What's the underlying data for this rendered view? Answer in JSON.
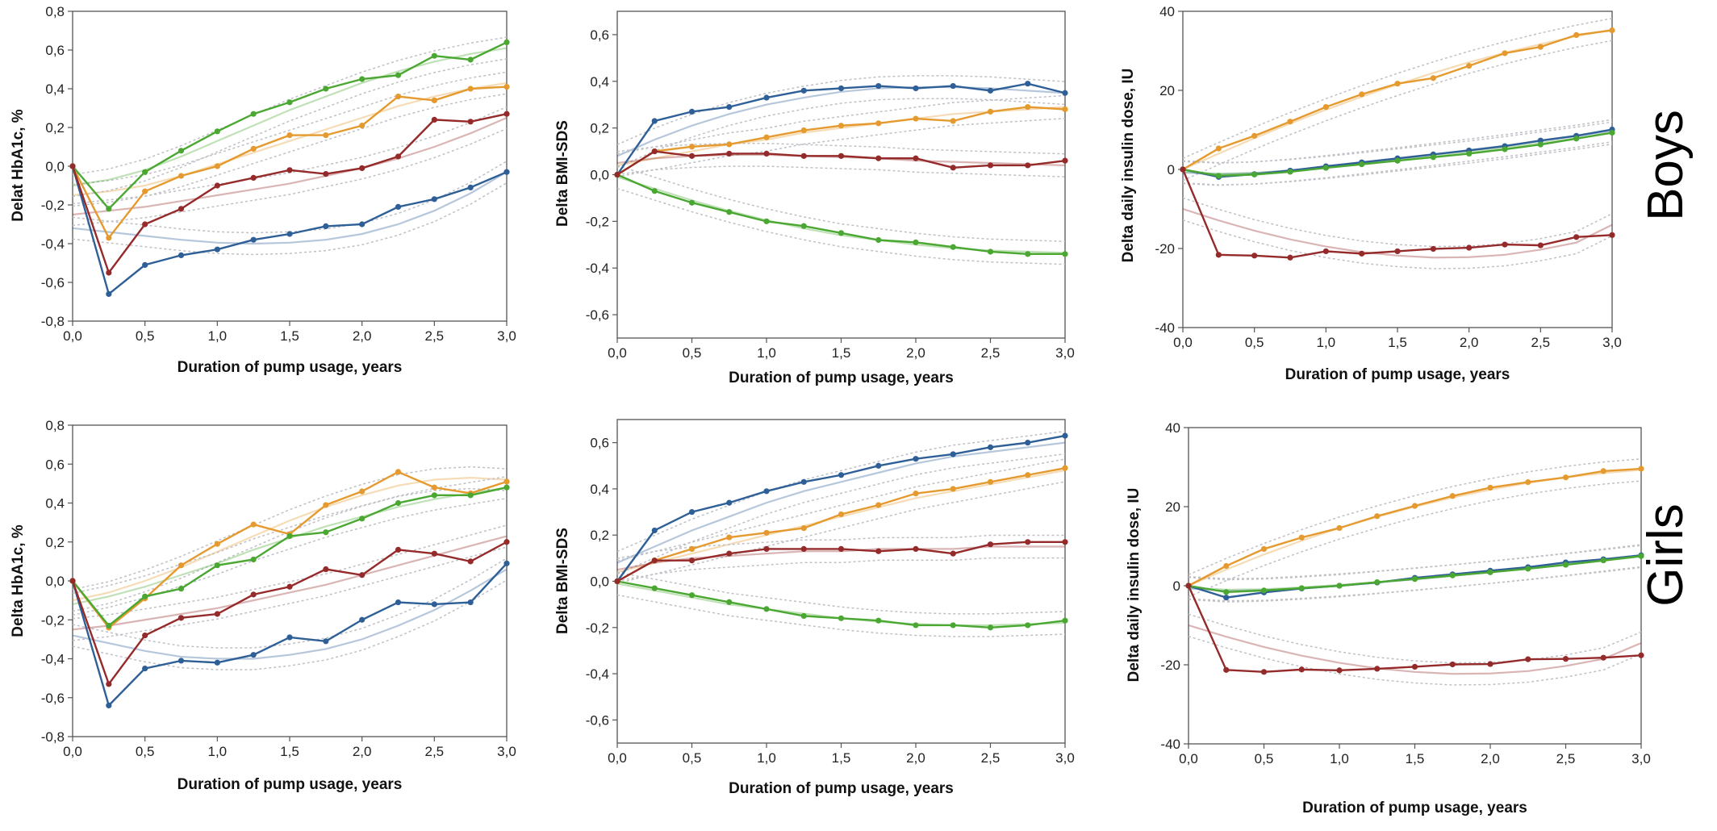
{
  "row_labels": [
    "Boys",
    "Girls"
  ],
  "colors": {
    "blue": "#2f5f97",
    "orange": "#e59a2f",
    "green": "#4aa832",
    "red": "#952a2a",
    "fit_line": "#bfc0c6"
  },
  "chart_data": [
    {
      "id": "boys-hba1c",
      "type": "line",
      "xlabel": "Duration of pump usage, years",
      "ylabel": "Delat HbA1c, %",
      "xlim": [
        0,
        3
      ],
      "ylim": [
        -0.8,
        0.8
      ],
      "xticks": [
        "0,0",
        "0,5",
        "1,0",
        "1,5",
        "2,0",
        "2,5",
        "3,0"
      ],
      "yticks": [
        "-0,8",
        "-0,6",
        "-0,4",
        "-0,2",
        "0,0",
        "0,2",
        "0,4",
        "0,6",
        "0,8"
      ],
      "x": [
        0,
        0.25,
        0.5,
        0.75,
        1,
        1.25,
        1.5,
        1.75,
        2,
        2.25,
        2.5,
        2.75,
        3
      ],
      "series": [
        {
          "color": "blue",
          "values": [
            0,
            -0.66,
            -0.51,
            -0.46,
            -0.43,
            -0.38,
            -0.35,
            -0.31,
            -0.3,
            -0.21,
            -0.17,
            -0.11,
            -0.03
          ],
          "fit": [
            -0.32,
            -0.34,
            -0.36,
            -0.38,
            -0.395,
            -0.4,
            -0.395,
            -0.38,
            -0.35,
            -0.3,
            -0.23,
            -0.14,
            -0.03
          ]
        },
        {
          "color": "orange",
          "values": [
            0,
            -0.37,
            -0.13,
            -0.05,
            0.0,
            0.09,
            0.16,
            0.16,
            0.21,
            0.36,
            0.34,
            0.4,
            0.41
          ],
          "fit": [
            -0.15,
            -0.13,
            -0.1,
            -0.05,
            0.01,
            0.07,
            0.13,
            0.19,
            0.25,
            0.31,
            0.36,
            0.4,
            0.43
          ]
        },
        {
          "color": "green",
          "values": [
            0,
            -0.22,
            -0.03,
            0.08,
            0.18,
            0.27,
            0.33,
            0.4,
            0.45,
            0.47,
            0.57,
            0.55,
            0.64
          ],
          "fit": [
            -0.1,
            -0.07,
            -0.02,
            0.05,
            0.13,
            0.21,
            0.29,
            0.36,
            0.43,
            0.49,
            0.54,
            0.58,
            0.61
          ]
        },
        {
          "color": "red",
          "values": [
            0,
            -0.55,
            -0.3,
            -0.22,
            -0.1,
            -0.06,
            -0.02,
            -0.04,
            -0.01,
            0.05,
            0.24,
            0.23,
            0.27
          ],
          "fit": [
            -0.25,
            -0.23,
            -0.21,
            -0.18,
            -0.15,
            -0.12,
            -0.09,
            -0.05,
            -0.01,
            0.04,
            0.1,
            0.17,
            0.25
          ]
        }
      ]
    },
    {
      "id": "boys-bmi",
      "type": "line",
      "xlabel": "Duration of pump usage, years",
      "ylabel": "Delta BMI-SDS",
      "xlim": [
        0,
        3
      ],
      "ylim": [
        -0.7,
        0.7
      ],
      "xticks": [
        "0,0",
        "0,5",
        "1,0",
        "1,5",
        "2,0",
        "2,5",
        "3,0"
      ],
      "yticks": [
        "-0,6",
        "-0,4",
        "-0,2",
        "0,0",
        "0,2",
        "0,4",
        "0,6"
      ],
      "x": [
        0,
        0.25,
        0.5,
        0.75,
        1,
        1.25,
        1.5,
        1.75,
        2,
        2.25,
        2.5,
        2.75,
        3
      ],
      "series": [
        {
          "color": "blue",
          "values": [
            0,
            0.23,
            0.27,
            0.29,
            0.33,
            0.36,
            0.37,
            0.38,
            0.37,
            0.38,
            0.36,
            0.39,
            0.35
          ],
          "fit": [
            0.08,
            0.15,
            0.21,
            0.26,
            0.3,
            0.33,
            0.355,
            0.37,
            0.375,
            0.375,
            0.37,
            0.36,
            0.35
          ]
        },
        {
          "color": "orange",
          "values": [
            0,
            0.1,
            0.12,
            0.13,
            0.16,
            0.19,
            0.21,
            0.22,
            0.24,
            0.23,
            0.27,
            0.29,
            0.28
          ],
          "fit": [
            0.04,
            0.07,
            0.1,
            0.13,
            0.15,
            0.18,
            0.2,
            0.22,
            0.24,
            0.26,
            0.27,
            0.28,
            0.29
          ]
        },
        {
          "color": "green",
          "values": [
            0,
            -0.07,
            -0.12,
            -0.16,
            -0.2,
            -0.22,
            -0.25,
            -0.28,
            -0.29,
            -0.31,
            -0.33,
            -0.34,
            -0.34
          ],
          "fit": [
            -0.01,
            -0.06,
            -0.11,
            -0.155,
            -0.195,
            -0.23,
            -0.26,
            -0.28,
            -0.3,
            -0.315,
            -0.325,
            -0.33,
            -0.335
          ]
        },
        {
          "color": "red",
          "values": [
            0,
            0.1,
            0.08,
            0.09,
            0.09,
            0.08,
            0.08,
            0.07,
            0.07,
            0.03,
            0.04,
            0.04,
            0.06
          ],
          "fit": [
            0.05,
            0.07,
            0.08,
            0.085,
            0.085,
            0.08,
            0.075,
            0.07,
            0.06,
            0.055,
            0.05,
            0.045,
            0.04
          ]
        }
      ]
    },
    {
      "id": "boys-insulin",
      "type": "line",
      "xlabel": "Duration of pump usage, years",
      "ylabel": "Delta daily insulin dose, IU",
      "xlim": [
        0,
        3
      ],
      "ylim": [
        -40,
        40
      ],
      "xticks": [
        "0,0",
        "0,5",
        "1,0",
        "1,5",
        "2,0",
        "2,5",
        "3,0"
      ],
      "yticks": [
        "-40",
        "-20",
        "0",
        "20",
        "40"
      ],
      "x": [
        0,
        0.25,
        0.5,
        0.75,
        1,
        1.25,
        1.5,
        1.75,
        2,
        2.25,
        2.5,
        2.75,
        3
      ],
      "series": [
        {
          "color": "orange",
          "values": [
            0,
            5.3,
            8.5,
            12.1,
            15.8,
            19.0,
            21.7,
            23.1,
            26.2,
            29.4,
            31.0,
            34.0,
            35.2
          ],
          "fit": [
            0,
            4.0,
            7.9,
            11.6,
            15.1,
            18.4,
            21.5,
            24.4,
            27.1,
            29.5,
            31.7,
            33.7,
            35.4
          ]
        },
        {
          "color": "blue",
          "values": [
            0,
            -1.9,
            -1.2,
            -0.3,
            0.8,
            1.8,
            2.8,
            3.8,
            4.8,
            5.9,
            7.3,
            8.5,
            10.1
          ],
          "fit": [
            -0.8,
            -1.2,
            -0.9,
            -0.2,
            0.7,
            1.7,
            2.7,
            3.8,
            4.9,
            6.0,
            7.2,
            8.4,
            9.8
          ]
        },
        {
          "color": "green",
          "values": [
            0,
            -1.6,
            -1.3,
            -0.6,
            0.4,
            1.3,
            2.2,
            3.1,
            4.0,
            5.1,
            6.3,
            7.8,
            9.3
          ],
          "fit": [
            -0.6,
            -1.1,
            -0.9,
            -0.3,
            0.5,
            1.4,
            2.4,
            3.4,
            4.4,
            5.5,
            6.7,
            7.9,
            9.2
          ]
        },
        {
          "color": "red",
          "values": [
            0,
            -21.6,
            -21.8,
            -22.3,
            -20.7,
            -21.3,
            -20.7,
            -20.1,
            -19.8,
            -19.0,
            -19.2,
            -17.1,
            -16.6
          ],
          "fit": [
            -10,
            -12.9,
            -15.5,
            -17.7,
            -19.5,
            -20.9,
            -21.8,
            -22.3,
            -22.2,
            -21.6,
            -20.3,
            -18.5,
            -14.0
          ]
        }
      ]
    },
    {
      "id": "girls-hba1c",
      "type": "line",
      "xlabel": "Duration of pump usage, years",
      "ylabel": "Delta HbA1c, %",
      "xlim": [
        0,
        3
      ],
      "ylim": [
        -0.8,
        0.8
      ],
      "xticks": [
        "0,0",
        "0,5",
        "1,0",
        "1,5",
        "2,0",
        "2,5",
        "3,0"
      ],
      "yticks": [
        "-0,8",
        "-0,6",
        "-0,4",
        "-0,2",
        "0,0",
        "0,2",
        "0,4",
        "0,6",
        "0,8"
      ],
      "x": [
        0,
        0.25,
        0.5,
        0.75,
        1,
        1.25,
        1.5,
        1.75,
        2,
        2.25,
        2.5,
        2.75,
        3
      ],
      "series": [
        {
          "color": "blue",
          "values": [
            0,
            -0.64,
            -0.45,
            -0.41,
            -0.42,
            -0.38,
            -0.29,
            -0.31,
            -0.2,
            -0.11,
            -0.12,
            -0.11,
            0.09
          ],
          "fit": [
            -0.28,
            -0.32,
            -0.36,
            -0.39,
            -0.4,
            -0.4,
            -0.38,
            -0.35,
            -0.3,
            -0.23,
            -0.15,
            -0.05,
            0.06
          ]
        },
        {
          "color": "orange",
          "values": [
            0,
            -0.24,
            -0.09,
            0.08,
            0.19,
            0.29,
            0.24,
            0.39,
            0.46,
            0.56,
            0.48,
            0.45,
            0.51
          ],
          "fit": [
            -0.1,
            -0.06,
            0.0,
            0.07,
            0.15,
            0.23,
            0.31,
            0.38,
            0.44,
            0.49,
            0.52,
            0.53,
            0.52
          ]
        },
        {
          "color": "green",
          "values": [
            0,
            -0.23,
            -0.08,
            -0.04,
            0.08,
            0.11,
            0.23,
            0.25,
            0.32,
            0.4,
            0.44,
            0.44,
            0.48
          ],
          "fit": [
            -0.12,
            -0.08,
            -0.03,
            0.03,
            0.09,
            0.16,
            0.22,
            0.28,
            0.33,
            0.38,
            0.42,
            0.45,
            0.48
          ]
        },
        {
          "color": "red",
          "values": [
            0,
            -0.53,
            -0.28,
            -0.19,
            -0.17,
            -0.07,
            -0.03,
            0.06,
            0.03,
            0.16,
            0.14,
            0.1,
            0.2
          ],
          "fit": [
            -0.25,
            -0.23,
            -0.2,
            -0.17,
            -0.14,
            -0.1,
            -0.06,
            -0.02,
            0.03,
            0.08,
            0.13,
            0.18,
            0.23
          ]
        }
      ]
    },
    {
      "id": "girls-bmi",
      "type": "line",
      "xlabel": "Duration of pump usage, years",
      "ylabel": "Delta BMI-SDS",
      "xlim": [
        0,
        3
      ],
      "ylim": [
        -0.7,
        0.7
      ],
      "xticks": [
        "0,0",
        "0,5",
        "1,0",
        "1,5",
        "2,0",
        "2,5",
        "3,0"
      ],
      "yticks": [
        "-0,6",
        "-0,4",
        "-0,2",
        "0,0",
        "0,2",
        "0,4",
        "0,6"
      ],
      "x": [
        0,
        0.25,
        0.5,
        0.75,
        1,
        1.25,
        1.5,
        1.75,
        2,
        2.25,
        2.5,
        2.75,
        3
      ],
      "series": [
        {
          "color": "blue",
          "values": [
            0,
            0.22,
            0.3,
            0.34,
            0.39,
            0.43,
            0.46,
            0.5,
            0.53,
            0.55,
            0.58,
            0.6,
            0.63
          ],
          "fit": [
            0.08,
            0.15,
            0.22,
            0.28,
            0.34,
            0.39,
            0.43,
            0.47,
            0.51,
            0.54,
            0.56,
            0.58,
            0.6
          ]
        },
        {
          "color": "orange",
          "values": [
            0,
            0.09,
            0.14,
            0.19,
            0.21,
            0.23,
            0.29,
            0.33,
            0.38,
            0.4,
            0.43,
            0.46,
            0.49
          ],
          "fit": [
            0.04,
            0.08,
            0.12,
            0.16,
            0.2,
            0.24,
            0.28,
            0.32,
            0.36,
            0.39,
            0.42,
            0.45,
            0.48
          ]
        },
        {
          "color": "green",
          "values": [
            0,
            -0.03,
            -0.06,
            -0.09,
            -0.12,
            -0.15,
            -0.16,
            -0.17,
            -0.19,
            -0.19,
            -0.2,
            -0.19,
            -0.17
          ],
          "fit": [
            -0.01,
            -0.04,
            -0.07,
            -0.1,
            -0.12,
            -0.14,
            -0.16,
            -0.175,
            -0.185,
            -0.19,
            -0.19,
            -0.185,
            -0.18
          ]
        },
        {
          "color": "red",
          "values": [
            0,
            0.09,
            0.09,
            0.12,
            0.14,
            0.14,
            0.14,
            0.13,
            0.14,
            0.12,
            0.16,
            0.17,
            0.17
          ],
          "fit": [
            0.05,
            0.08,
            0.1,
            0.11,
            0.12,
            0.13,
            0.13,
            0.14,
            0.14,
            0.14,
            0.15,
            0.15,
            0.15
          ]
        }
      ]
    },
    {
      "id": "girls-insulin",
      "type": "line",
      "xlabel": "Duration of pump usage, years",
      "ylabel": "Delta daily insulin dose, IU",
      "xlim": [
        0,
        3
      ],
      "ylim": [
        -40,
        40
      ],
      "xticks": [
        "0,0",
        "0,5",
        "1,0",
        "1,5",
        "2,0",
        "2,5",
        "3,0"
      ],
      "yticks": [
        "-40",
        "-20",
        "0",
        "20",
        "40"
      ],
      "x": [
        0,
        0.25,
        0.5,
        0.75,
        1,
        1.25,
        1.5,
        1.75,
        2,
        2.25,
        2.5,
        2.75,
        3
      ],
      "series": [
        {
          "color": "orange",
          "values": [
            0,
            5.0,
            9.3,
            12.2,
            14.6,
            17.6,
            20.2,
            22.7,
            24.8,
            26.2,
            27.4,
            29.0,
            29.6
          ],
          "fit": [
            0,
            4.1,
            7.9,
            11.4,
            14.6,
            17.4,
            20.0,
            22.3,
            24.3,
            26.0,
            27.4,
            28.5,
            29.3
          ]
        },
        {
          "color": "blue",
          "values": [
            0,
            -3.0,
            -1.7,
            -0.7,
            0.0,
            0.8,
            2.0,
            2.9,
            3.8,
            4.7,
            5.9,
            6.7,
            7.7
          ],
          "fit": [
            -0.7,
            -1.3,
            -1.1,
            -0.6,
            0.0,
            0.8,
            1.6,
            2.5,
            3.4,
            4.4,
            5.4,
            6.5,
            7.6
          ]
        },
        {
          "color": "green",
          "values": [
            0,
            -1.6,
            -1.2,
            -0.6,
            0.0,
            0.9,
            1.7,
            2.6,
            3.4,
            4.3,
            5.3,
            6.4,
            7.5
          ],
          "fit": [
            -0.5,
            -1.0,
            -0.9,
            -0.4,
            0.2,
            0.9,
            1.7,
            2.5,
            3.4,
            4.3,
            5.3,
            6.3,
            7.4
          ]
        },
        {
          "color": "red",
          "values": [
            0,
            -21.3,
            -21.8,
            -21.2,
            -21.4,
            -21.0,
            -20.5,
            -19.9,
            -19.8,
            -18.6,
            -18.5,
            -18.2,
            -17.6
          ],
          "fit": [
            -10,
            -12.9,
            -15.5,
            -17.7,
            -19.5,
            -20.9,
            -21.8,
            -22.3,
            -22.2,
            -21.6,
            -20.3,
            -18.5,
            -14.5
          ]
        }
      ]
    }
  ]
}
